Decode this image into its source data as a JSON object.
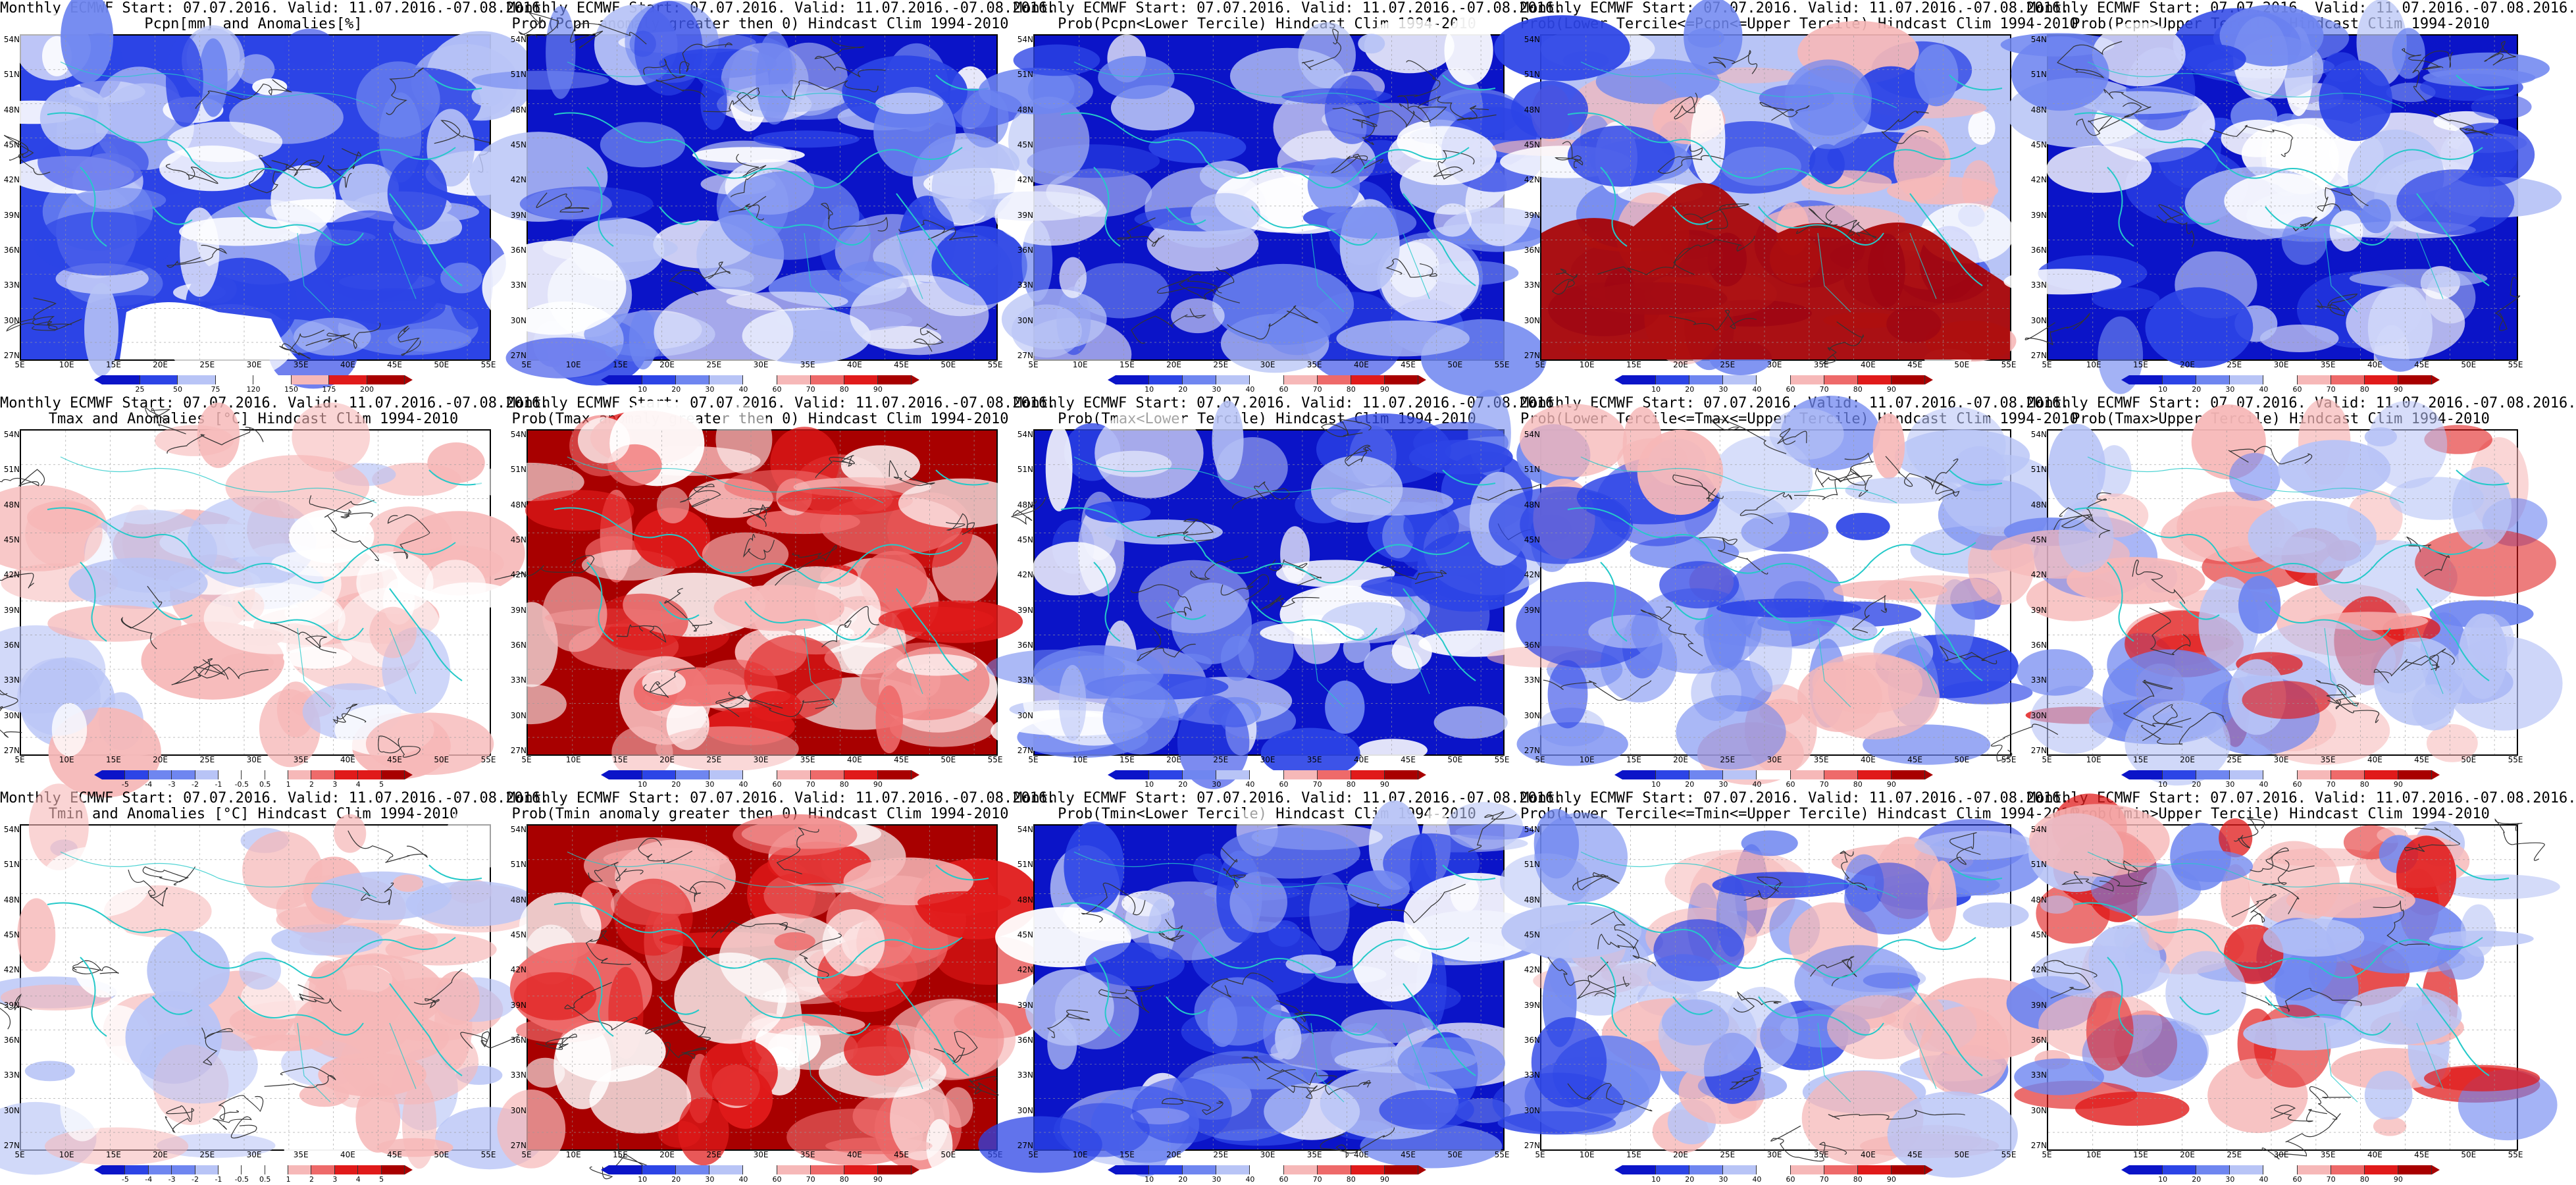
{
  "panels": [
    {
      "title1": "Monthly ECMWF Start: 07.07.2016. Valid: 11.07.2016.-07.08.2016.",
      "title2": "Pcpn[mm] and Anomalies[%]",
      "base": "rain",
      "cbar": [
        "25",
        "50",
        "75",
        "120",
        "150",
        "175",
        "200"
      ]
    },
    {
      "title1": "Monthly ECMWF Start: 07.07.2016. Valid: 11.07.2016.-07.08.2016.",
      "title2": "Prob(Pcpn anomaly greater then 0) Hindcast Clim 1994-2010",
      "base": "blue",
      "cbar": [
        "10",
        "20",
        "30",
        "40",
        "60",
        "70",
        "80",
        "90"
      ]
    },
    {
      "title1": "Monthly ECMWF Start: 07.07.2016. Valid: 11.07.2016.-07.08.2016.",
      "title2": "Prob(Pcpn<Lower Tercile) Hindcast Clim 1994-2010",
      "base": "blue",
      "cbar": [
        "10",
        "20",
        "30",
        "40",
        "60",
        "70",
        "80",
        "90"
      ]
    },
    {
      "title1": "Monthly ECMWF Start: 07.07.2016. Valid: 11.07.2016.-07.08.2016.",
      "title2": "Prob(Lower Tercile<=Pcpn<=Upper Tercile) Hindcast Clim 1994-2010",
      "base": "redsouth",
      "cbar": [
        "10",
        "20",
        "30",
        "40",
        "60",
        "70",
        "80",
        "90"
      ]
    },
    {
      "title1": "Monthly ECMWF Start: 07.07.2016. Valid: 11.07.2016.-07.08.2016.",
      "title2": "Prob(Pcpn>Upper Tercile) Hindcast Clim 1994-2010",
      "base": "blue",
      "cbar": [
        "10",
        "20",
        "30",
        "40",
        "60",
        "70",
        "80",
        "90"
      ]
    },
    {
      "title1": "Monthly ECMWF Start: 07.07.2016. Valid: 11.07.2016.-07.08.2016.",
      "title2": "Tmax and Anomalies [°C] Hindcast Clim 1994-2010",
      "base": "light",
      "cbar": [
        "-5",
        "-4",
        "-3",
        "-2",
        "-1",
        "-0.5",
        "0.5",
        "1",
        "2",
        "3",
        "4",
        "5"
      ]
    },
    {
      "title1": "Monthly ECMWF Start: 07.07.2016. Valid: 11.07.2016.-07.08.2016.",
      "title2": "Prob(Tmax anomaly greater then 0) Hindcast Clim 1994-2010",
      "base": "red",
      "cbar": [
        "10",
        "20",
        "30",
        "40",
        "60",
        "70",
        "80",
        "90"
      ]
    },
    {
      "title1": "Monthly ECMWF Start: 07.07.2016. Valid: 11.07.2016.-07.08.2016.",
      "title2": "Prob(Tmax<Lower Tercile) Hindcast Clim 1994-2010",
      "base": "blue",
      "cbar": [
        "10",
        "20",
        "30",
        "40",
        "60",
        "70",
        "80",
        "90"
      ]
    },
    {
      "title1": "Monthly ECMWF Start: 07.07.2016. Valid: 11.07.2016.-07.08.2016.",
      "title2": "Prob(Lower Tercile<=Tmax<=Upper Tercile) Hindcast Clim 1994-2010",
      "base": "mixed",
      "cbar": [
        "10",
        "20",
        "30",
        "40",
        "60",
        "70",
        "80",
        "90"
      ]
    },
    {
      "title1": "Monthly ECMWF Start: 07.07.2016. Valid: 11.07.2016.-07.08.2016.",
      "title2": "Prob(Tmax>Upper Tercile) Hindcast Clim 1994-2010",
      "base": "redmid",
      "cbar": [
        "10",
        "20",
        "30",
        "40",
        "60",
        "70",
        "80",
        "90"
      ]
    },
    {
      "title1": "Monthly ECMWF Start: 07.07.2016. Valid: 11.07.2016.-07.08.2016.",
      "title2": "Tmin and Anomalies [°C] Hindcast Clim 1994-2010",
      "base": "light",
      "cbar": [
        "-5",
        "-4",
        "-3",
        "-2",
        "-1",
        "-0.5",
        "0.5",
        "1",
        "2",
        "3",
        "4",
        "5"
      ]
    },
    {
      "title1": "Monthly ECMWF Start: 07.07.2016. Valid: 11.07.2016.-07.08.2016.",
      "title2": "Prob(Tmin anomaly greater then 0) Hindcast Clim 1994-2010",
      "base": "red",
      "cbar": [
        "10",
        "20",
        "30",
        "40",
        "60",
        "70",
        "80",
        "90"
      ]
    },
    {
      "title1": "Monthly ECMWF Start: 07.07.2016. Valid: 11.07.2016.-07.08.2016.",
      "title2": "Prob(Tmin<Lower Tercile) Hindcast Clim 1994-2010",
      "base": "blue",
      "cbar": [
        "10",
        "20",
        "30",
        "40",
        "60",
        "70",
        "80",
        "90"
      ]
    },
    {
      "title1": "Monthly ECMWF Start: 07.07.2016. Valid: 11.07.2016.-07.08.2016.",
      "title2": "Prob(Lower Tercile<=Tmin<=Upper Tercile) Hindcast Clim 1994-2010",
      "base": "mixed",
      "cbar": [
        "10",
        "20",
        "30",
        "40",
        "60",
        "70",
        "80",
        "90"
      ]
    },
    {
      "title1": "Monthly ECMWF Start: 07.07.2016. Valid: 11.07.2016.-07.08.2016.",
      "title2": "Prob(Tmin>Upper Tercile) Hindcast Clim 1994-2010",
      "base": "redmid",
      "cbar": [
        "10",
        "20",
        "30",
        "40",
        "60",
        "70",
        "80",
        "90"
      ]
    }
  ],
  "lat_labels": [
    "54N",
    "51N",
    "48N",
    "45N",
    "42N",
    "39N",
    "36N",
    "33N",
    "30N",
    "27N"
  ],
  "lon_labels": [
    "5E",
    "10E",
    "15E",
    "20E",
    "25E",
    "30E",
    "35E",
    "40E",
    "45E",
    "50E",
    "55E"
  ],
  "colors": {
    "deep_blue": "#0b14c8",
    "blue": "#2c44e6",
    "mid_blue": "#6f86f0",
    "light_blue": "#b8c4f6",
    "white": "#ffffff",
    "light_red": "#f6b8b8",
    "mid_red": "#ee6a6a",
    "red": "#e01a1a",
    "deep_red": "#a80000",
    "coast": "#25c9c9",
    "contour": "#333333"
  }
}
